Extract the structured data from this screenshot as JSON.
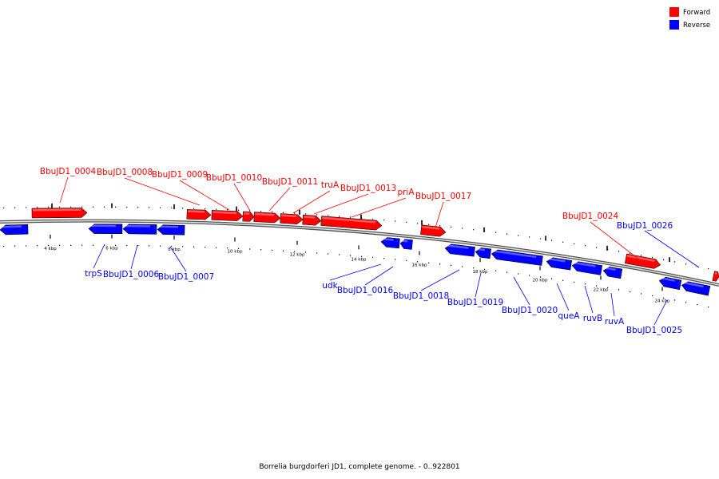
{
  "caption": "Borrelia burgdorferi JD1, complete genome. - 0..922801",
  "colors": {
    "forward": "#ff0000",
    "reverse": "#0000ff",
    "backbone": "#888888"
  },
  "legend": [
    {
      "label": "Forward",
      "strand": "forward"
    },
    {
      "label": "Reverse",
      "strand": "reverse"
    }
  ],
  "ticks": [
    "4 kbp",
    "6 kbp",
    "8 kbp",
    "10 kbp",
    "12 kbp",
    "14 kbp",
    "16 kbp",
    "18 kbp",
    "20 kbp",
    "22 kbp",
    "24 kbp"
  ],
  "forward_labels": [
    "BbuJD1_0004",
    "BbuJD1_0008",
    "BbuJD1_0009",
    "BbuJD1_0010",
    "BbuJD1_0011",
    "truA",
    "BbuJD1_0013",
    "priA",
    "BbuJD1_0017",
    "BbuJD1_0024"
  ],
  "reverse_labels": [
    "trpS",
    "BbuJD1_0006",
    "BbuJD1_0007",
    "udk",
    "BbuJD1_0016",
    "BbuJD1_0018",
    "BbuJD1_0019",
    "BbuJD1_0020",
    "queA",
    "ruvB",
    "ruvA",
    "BbuJD1_0025",
    "BbuJD1_0026"
  ]
}
